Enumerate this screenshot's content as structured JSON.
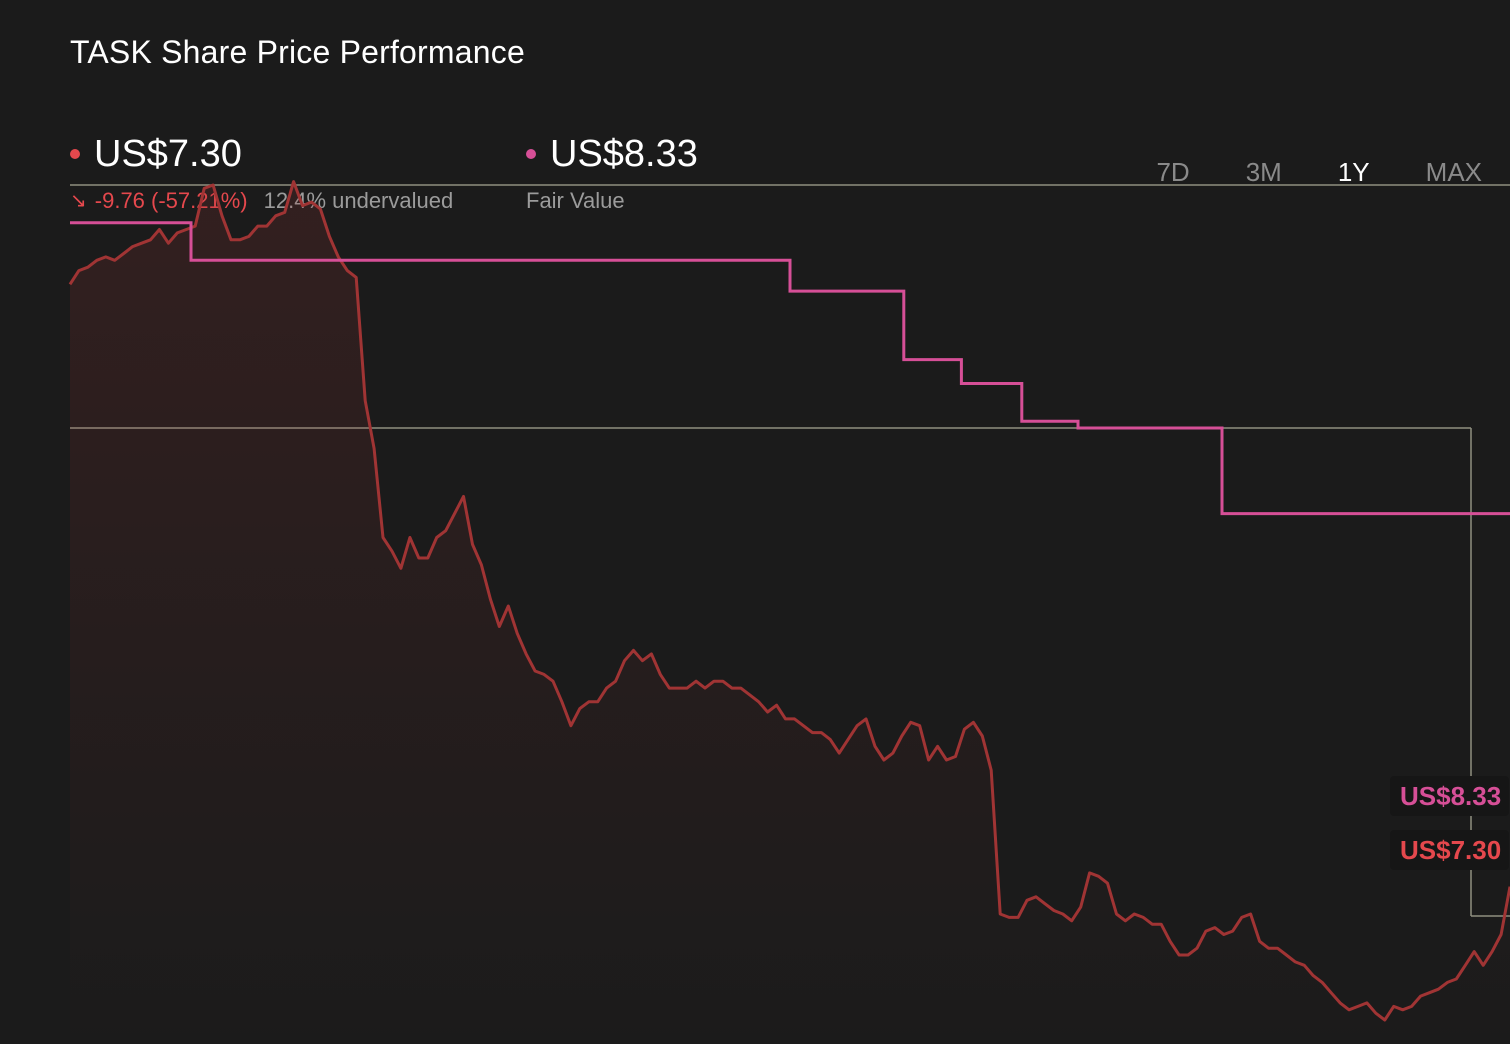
{
  "title": "TASK Share Price Performance",
  "price": {
    "value": "US$7.30",
    "change": "-9.76 (-57.21%)",
    "valuation": "12.4% undervalued",
    "color": "#e5484d",
    "arrow_icon": "arrow-down-right-icon"
  },
  "fair_value": {
    "value": "US$8.33",
    "label": "Fair Value",
    "color": "#d64f97"
  },
  "periods": [
    "7D",
    "3M",
    "1Y",
    "MAX"
  ],
  "active_period": "1Y",
  "chart_data": {
    "type": "line",
    "title": "",
    "xlabel": "",
    "ylabel": "",
    "ylim": [
      5.0,
      18.5
    ],
    "grid": false,
    "series": [
      {
        "name": "",
        "color": "#a03434",
        "values": [
          16.1,
          16.3,
          16.35,
          16.45,
          16.5,
          16.45,
          16.55,
          16.65,
          16.7,
          16.75,
          16.9,
          16.7,
          16.85,
          16.9,
          16.95,
          17.5,
          17.55,
          17.1,
          16.75,
          16.75,
          16.8,
          16.95,
          16.95,
          17.1,
          17.15,
          17.6,
          17.25,
          17.3,
          17.2,
          16.8,
          16.5,
          16.3,
          16.2,
          14.4,
          13.7,
          12.4,
          12.2,
          11.95,
          12.4,
          12.1,
          12.1,
          12.4,
          12.5,
          12.75,
          13.0,
          12.3,
          12.0,
          11.5,
          11.1,
          11.4,
          11.0,
          10.7,
          10.45,
          10.4,
          10.3,
          10.0,
          9.65,
          9.9,
          10.0,
          10.0,
          10.2,
          10.3,
          10.6,
          10.75,
          10.6,
          10.7,
          10.4,
          10.2,
          10.2,
          10.2,
          10.3,
          10.2,
          10.3,
          10.3,
          10.2,
          10.2,
          10.1,
          10.0,
          9.85,
          9.95,
          9.75,
          9.75,
          9.65,
          9.55,
          9.55,
          9.45,
          9.25,
          9.45,
          9.65,
          9.75,
          9.35,
          9.15,
          9.25,
          9.5,
          9.7,
          9.65,
          9.15,
          9.35,
          9.15,
          9.2,
          9.6,
          9.7,
          9.5,
          9.0,
          6.9,
          6.85,
          6.85,
          7.1,
          7.15,
          7.05,
          6.95,
          6.9,
          6.8,
          7.0,
          7.5,
          7.45,
          7.35,
          6.9,
          6.8,
          6.9,
          6.85,
          6.75,
          6.75,
          6.5,
          6.3,
          6.3,
          6.4,
          6.65,
          6.7,
          6.6,
          6.65,
          6.85,
          6.9,
          6.5,
          6.4,
          6.4,
          6.3,
          6.2,
          6.15,
          6.0,
          5.9,
          5.75,
          5.6,
          5.5,
          5.55,
          5.6,
          5.45,
          5.35,
          5.55,
          5.5,
          5.55,
          5.7,
          5.75,
          5.8,
          5.9,
          5.95,
          6.15,
          6.35,
          6.15,
          6.35,
          6.6,
          7.3
        ]
      },
      {
        "name": "",
        "color": "#d64f97",
        "step": true,
        "points": [
          [
            0,
            17.0
          ],
          [
            0.084,
            17.0
          ],
          [
            0.084,
            16.45
          ],
          [
            0.5,
            16.45
          ],
          [
            0.5,
            16.0
          ],
          [
            0.579,
            16.0
          ],
          [
            0.579,
            15.0
          ],
          [
            0.619,
            15.0
          ],
          [
            0.619,
            14.65
          ],
          [
            0.661,
            14.65
          ],
          [
            0.661,
            14.1
          ],
          [
            0.7,
            14.1
          ],
          [
            0.7,
            14.0
          ],
          [
            0.8,
            14.0
          ],
          [
            0.8,
            12.75
          ],
          [
            1.0,
            12.75
          ]
        ]
      }
    ],
    "reference_lines": [
      17.55,
      14.0,
      8.33
    ],
    "end_labels": [
      "US$8.33",
      "US$7.30"
    ]
  }
}
